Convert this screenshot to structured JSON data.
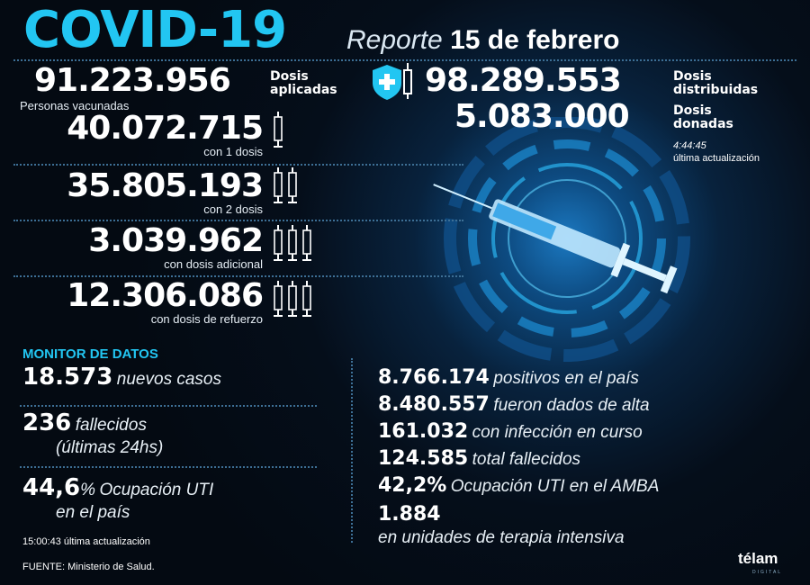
{
  "header": {
    "title": "COVID-19",
    "report_word": "Reporte",
    "date": "15 de febrero"
  },
  "doses": {
    "applied": {
      "value": "91.223.956",
      "label1": "Dosis",
      "label2": "aplicadas"
    },
    "distributed": {
      "value": "98.289.553",
      "label1": "Dosis",
      "label2": "distribuidas"
    },
    "donated": {
      "value": "5.083.000",
      "label1": "Dosis",
      "label2": "donadas"
    },
    "update_time": "4:44:45",
    "update_label": "última actualización"
  },
  "vaccinated": {
    "heading": "Personas vacunadas",
    "rows": [
      {
        "value": "40.072.715",
        "label": "con 1 dosis"
      },
      {
        "value": "35.805.193",
        "label": "con 2 dosis"
      },
      {
        "value": "3.039.962",
        "label": "con dosis adicional"
      },
      {
        "value": "12.306.086",
        "label": "con dosis de refuerzo"
      }
    ]
  },
  "monitor": {
    "heading": "MONITOR DE DATOS",
    "new_cases": {
      "value": "18.573",
      "label": "nuevos casos"
    },
    "deaths": {
      "value": "236",
      "label": "fallecidos",
      "label2": "(últimas 24hs)"
    },
    "icu": {
      "value": "44,6",
      "unit": "%",
      "label": "Ocupación UTI",
      "label2": "en el país"
    },
    "update": "15:00:43 última actualización",
    "source": "FUENTE: Ministerio de Salud."
  },
  "national": [
    {
      "value": "8.766.174",
      "label": "positivos en el país"
    },
    {
      "value": "8.480.557",
      "label": "fueron dados de alta"
    },
    {
      "value": "161.032",
      "label": "con infección en curso"
    },
    {
      "value": "124.585",
      "label": "total fallecidos"
    },
    {
      "value": "42,2%",
      "label": "Ocupación UTI en el AMBA"
    },
    {
      "value": "1.884",
      "label": "en unidades de terapia intensiva"
    }
  ],
  "brand": {
    "logo": "télam",
    "sub": "DIGITAL"
  },
  "colors": {
    "accent": "#22c6f2",
    "background": "#050c14"
  }
}
